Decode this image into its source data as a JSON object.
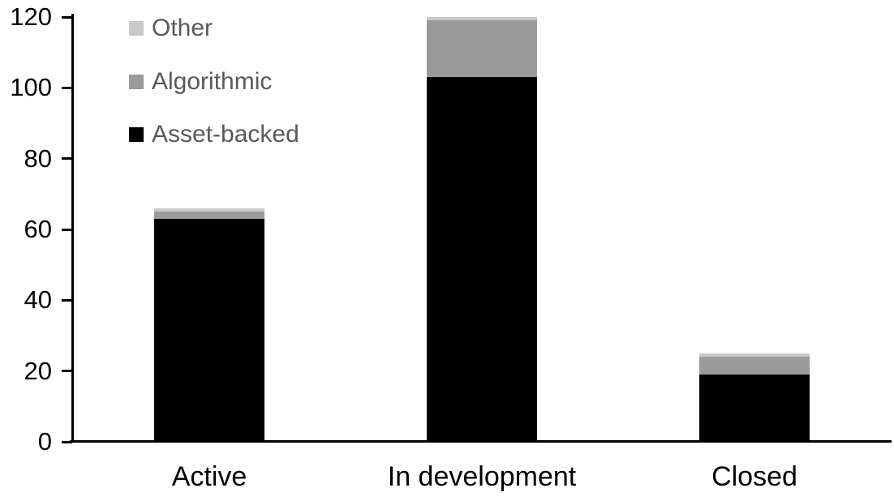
{
  "chart_data": {
    "type": "bar",
    "variant": "stacked-vertical",
    "title": "",
    "xlabel": "",
    "ylabel": "",
    "categories": [
      "Active",
      "In development",
      "Closed"
    ],
    "series": [
      {
        "name": "Asset-backed",
        "color": "#000000",
        "values": [
          63,
          103,
          19
        ]
      },
      {
        "name": "Algorithmic",
        "color": "#9a9a9a",
        "values": [
          2,
          16,
          5
        ]
      },
      {
        "name": "Other",
        "color": "#c9c9c9",
        "values": [
          1,
          1,
          1
        ]
      }
    ],
    "stack_totals": [
      66,
      120,
      25
    ],
    "ylim": [
      0,
      120
    ],
    "ytick_step": 20,
    "yticks": [
      0,
      20,
      40,
      60,
      80,
      100,
      120
    ],
    "grid": "off",
    "legend_position": "top-left-inside",
    "legend_order": [
      "Other",
      "Algorithmic",
      "Asset-backed"
    ]
  },
  "colors": {
    "background": "#ffffff",
    "axis": "#000000",
    "tick_label_text": "#000000",
    "legend_text": "#595959"
  }
}
